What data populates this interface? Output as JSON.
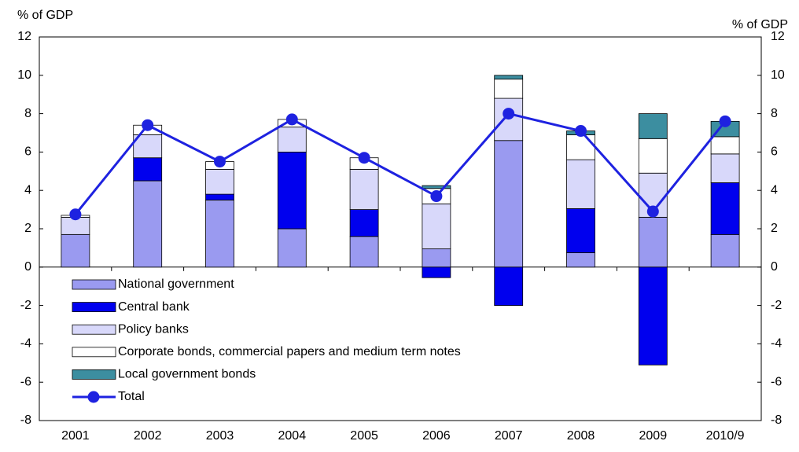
{
  "chart_data": {
    "type": "stacked-bar-line",
    "y_label": "% of GDP",
    "y2_label": "% of GDP",
    "categories": [
      "2001",
      "2002",
      "2003",
      "2004",
      "2005",
      "2006",
      "2007",
      "2008",
      "2009",
      "2010/9"
    ],
    "series": [
      {
        "name": "National government",
        "color": "#9a9af0",
        "values": [
          1.7,
          4.5,
          3.5,
          2.0,
          1.6,
          0.95,
          6.6,
          0.75,
          2.6,
          1.7
        ]
      },
      {
        "name": "Central bank",
        "color": "#0000ee",
        "values": [
          0,
          1.2,
          0.3,
          4.0,
          1.4,
          -0.55,
          -2.0,
          2.3,
          -5.1,
          2.7
        ]
      },
      {
        "name": "Policy banks",
        "color": "#d8d8fa",
        "values": [
          0.9,
          1.2,
          1.3,
          1.3,
          2.1,
          2.35,
          2.2,
          2.55,
          2.3,
          1.5
        ]
      },
      {
        "name": "Corporate bonds, commercial papers and medium term notes",
        "color": "#ffffff",
        "values": [
          0.1,
          0.5,
          0.4,
          0.4,
          0.6,
          0.8,
          1.0,
          1.3,
          1.8,
          0.9
        ]
      },
      {
        "name": "Local government bonds",
        "color": "#3c8ea0",
        "values": [
          0,
          0,
          0,
          0,
          0,
          0.15,
          0.2,
          0.2,
          1.3,
          0.8
        ]
      },
      {
        "name": "Total",
        "color": "#1e22e0",
        "type": "line",
        "values": [
          2.75,
          7.4,
          5.5,
          7.7,
          5.7,
          3.7,
          8.0,
          7.1,
          2.9,
          7.6
        ]
      }
    ],
    "ylim": [
      -8,
      12
    ],
    "yticks": [
      -8,
      -6,
      -4,
      -2,
      0,
      2,
      4,
      6,
      8,
      10,
      12
    ],
    "y2lim": [
      -8,
      12
    ],
    "y2ticks": [
      -8,
      -6,
      -4,
      -2,
      0,
      2,
      4,
      6,
      8,
      10,
      12
    ],
    "legend": "lower-left",
    "grid": false
  }
}
